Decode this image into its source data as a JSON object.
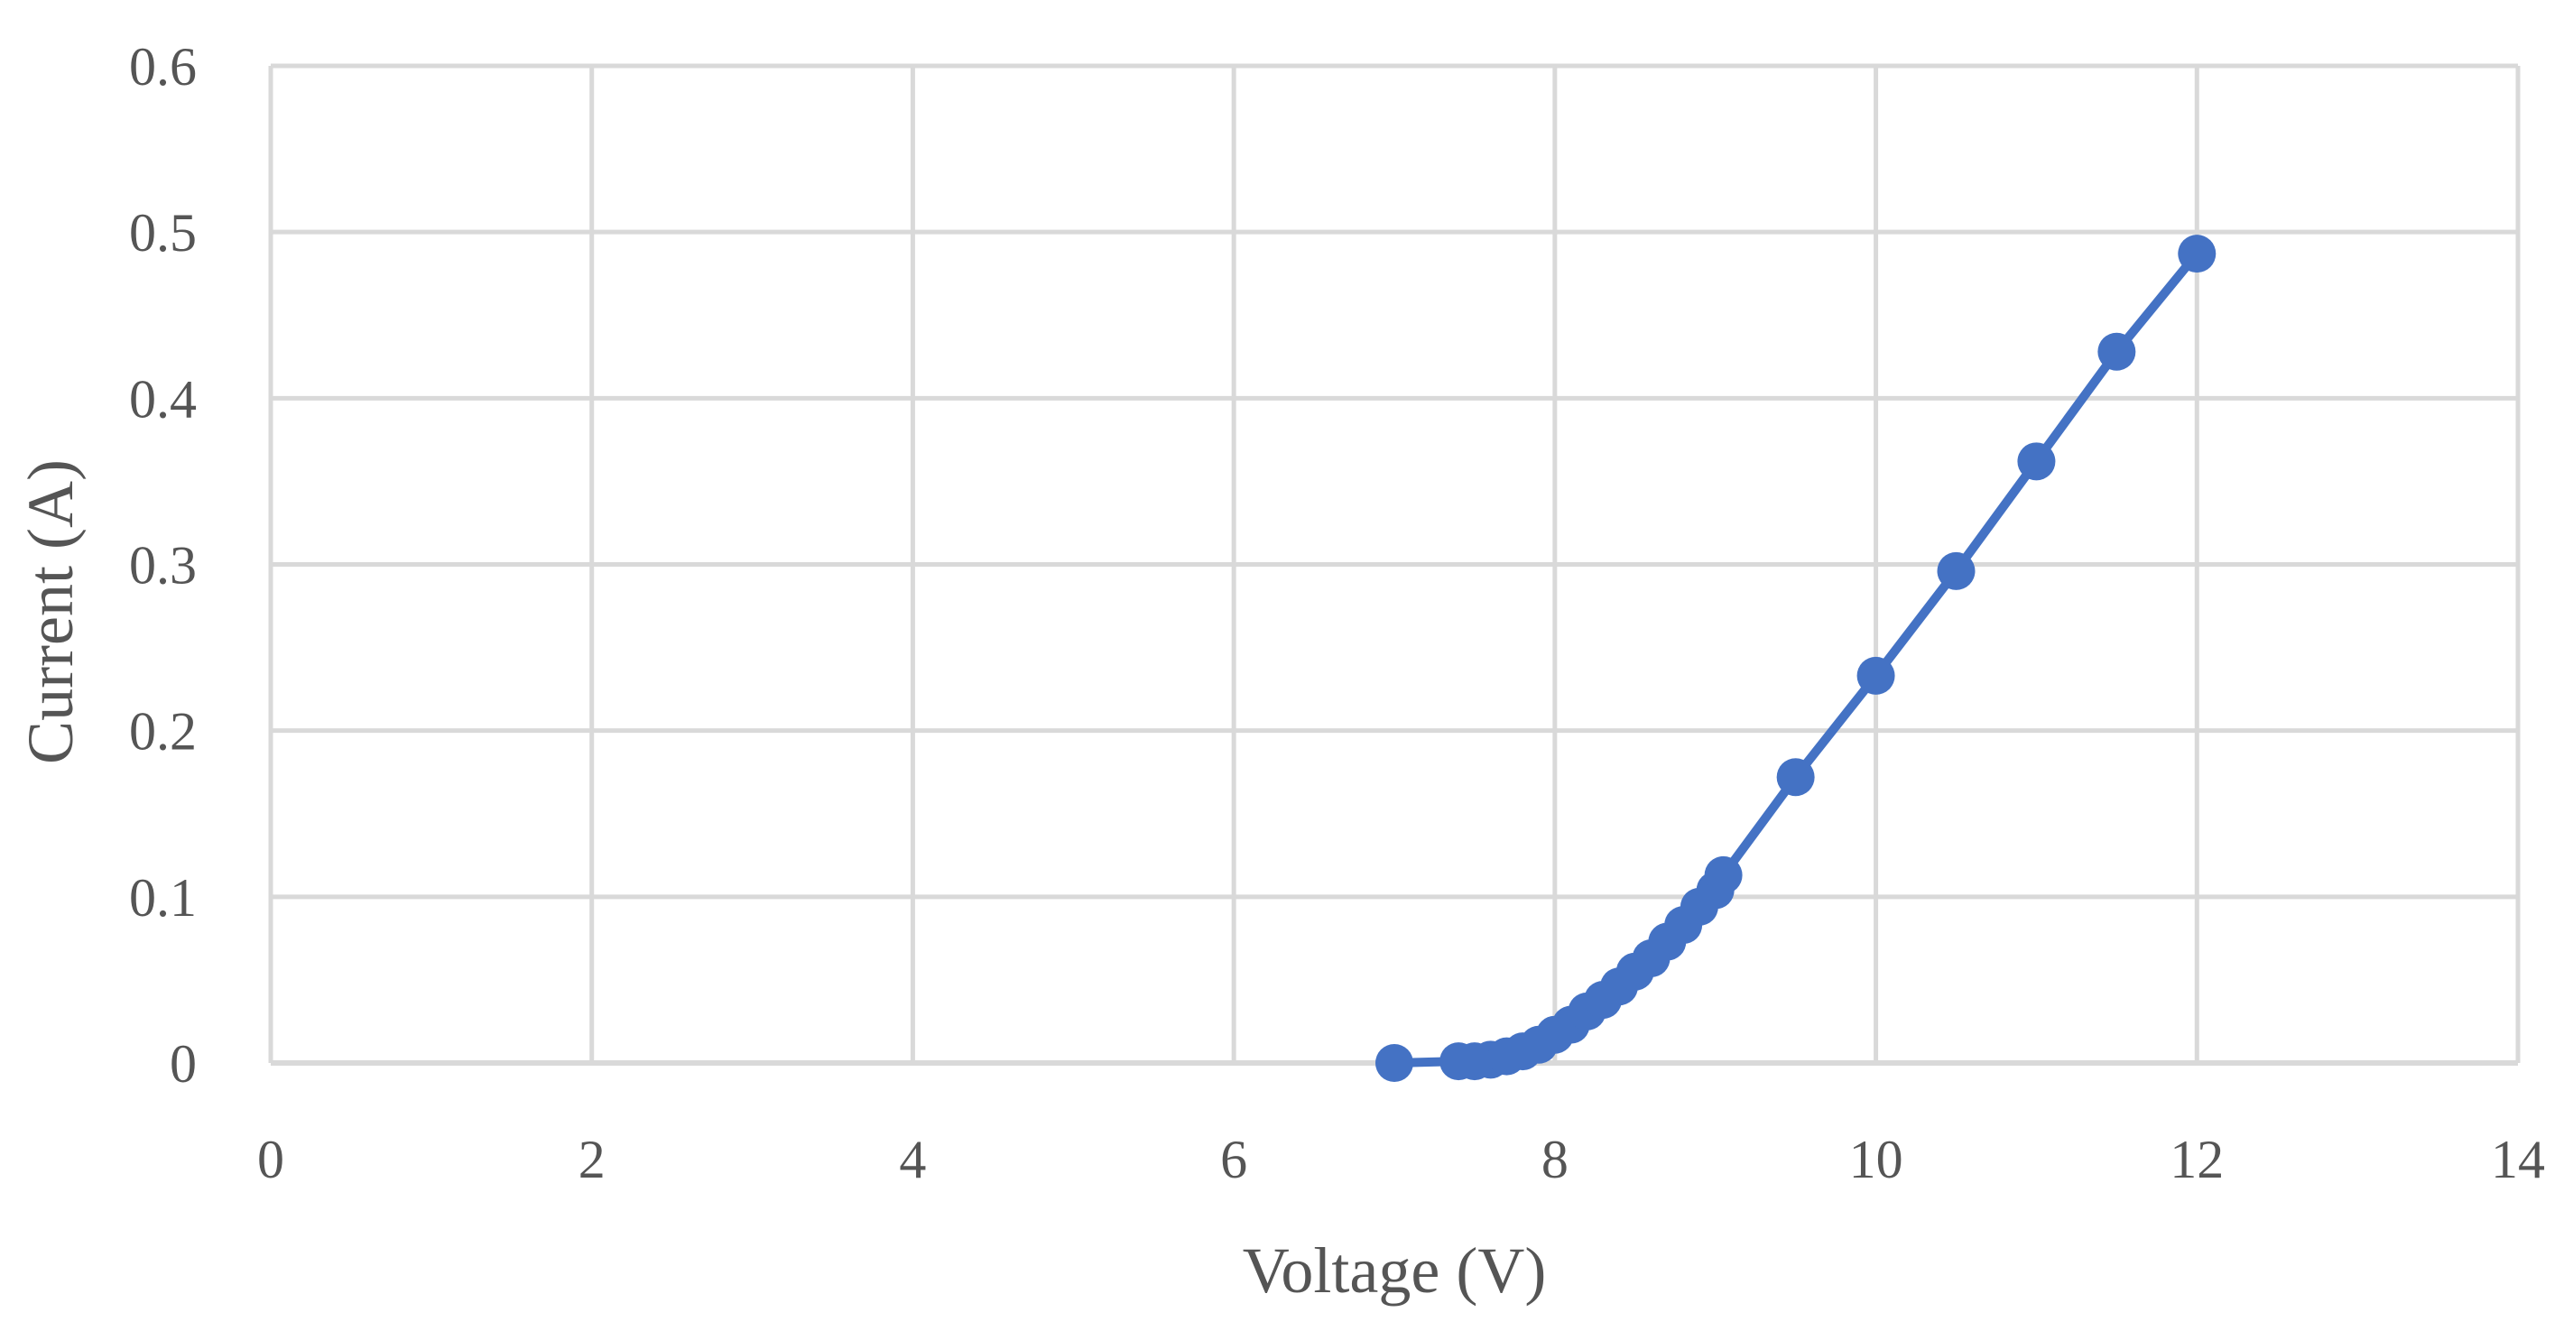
{
  "chart_data": {
    "type": "scatter",
    "title": "",
    "xlabel": "Voltage (V)",
    "ylabel": "Current (A)",
    "xlim": [
      0,
      14
    ],
    "ylim": [
      0,
      0.6
    ],
    "x_ticks": [
      "0",
      "2",
      "4",
      "6",
      "8",
      "10",
      "12",
      "14"
    ],
    "y_ticks": [
      "0",
      "0.1",
      "0.2",
      "0.3",
      "0.4",
      "0.5",
      "0.6"
    ],
    "grid": true,
    "legend": "none",
    "line_connected": true,
    "series_color": "#4472c4",
    "series": [
      {
        "points": [
          {
            "x": 7.0,
            "y": 0.0
          },
          {
            "x": 7.4,
            "y": 0.001
          },
          {
            "x": 7.5,
            "y": 0.001
          },
          {
            "x": 7.6,
            "y": 0.002
          },
          {
            "x": 7.7,
            "y": 0.004
          },
          {
            "x": 7.8,
            "y": 0.007
          },
          {
            "x": 7.9,
            "y": 0.011
          },
          {
            "x": 8.0,
            "y": 0.017
          },
          {
            "x": 8.1,
            "y": 0.023
          },
          {
            "x": 8.2,
            "y": 0.031
          },
          {
            "x": 8.3,
            "y": 0.038
          },
          {
            "x": 8.4,
            "y": 0.046
          },
          {
            "x": 8.5,
            "y": 0.055
          },
          {
            "x": 8.6,
            "y": 0.063
          },
          {
            "x": 8.7,
            "y": 0.073
          },
          {
            "x": 8.8,
            "y": 0.083
          },
          {
            "x": 8.9,
            "y": 0.094
          },
          {
            "x": 9.0,
            "y": 0.104
          },
          {
            "x": 9.05,
            "y": 0.113
          },
          {
            "x": 9.5,
            "y": 0.172
          },
          {
            "x": 10.0,
            "y": 0.233
          },
          {
            "x": 10.5,
            "y": 0.296
          },
          {
            "x": 11.0,
            "y": 0.362
          },
          {
            "x": 11.5,
            "y": 0.428
          },
          {
            "x": 12.0,
            "y": 0.487
          }
        ]
      }
    ]
  }
}
